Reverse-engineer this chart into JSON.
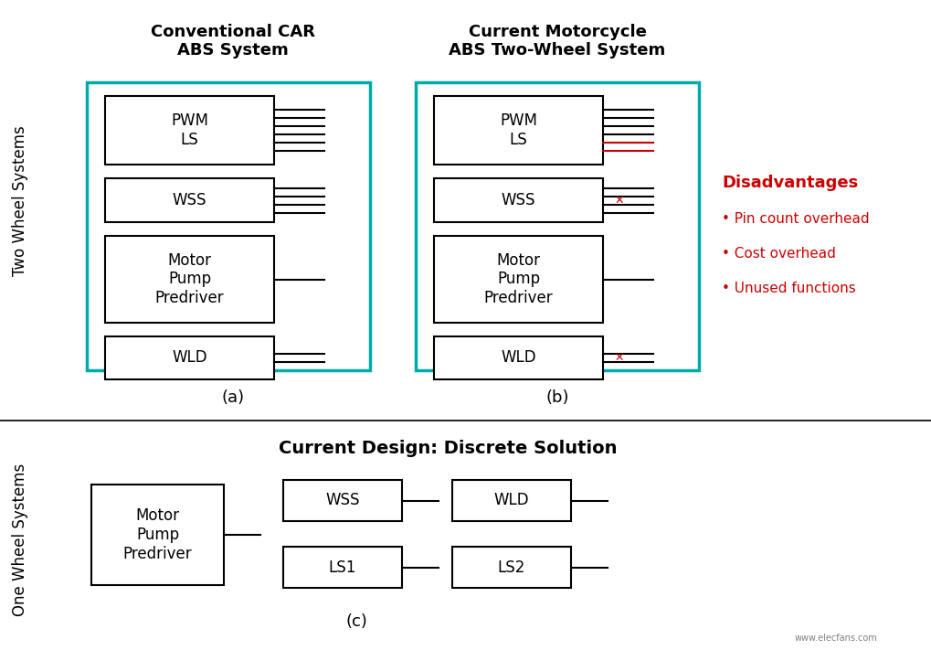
{
  "title_a": "Conventional CAR\nABS System",
  "title_b": "Current Motorcycle\nABS Two-Wheel System",
  "title_c": "Current Design: Discrete Solution",
  "label_a": "(a)",
  "label_b": "(b)",
  "label_c": "(c)",
  "row_label_top": "Two Wheel Systems",
  "row_label_bot": "One Wheel Systems",
  "disadvantages_title": "Disadvantages",
  "disadvantages": [
    "Pin count overhead",
    "Cost overhead",
    "Unused functions"
  ],
  "teal_color": "#00AAAA",
  "red_color": "#CC0000",
  "black": "#000000",
  "bg_color": "#FFFFFF"
}
